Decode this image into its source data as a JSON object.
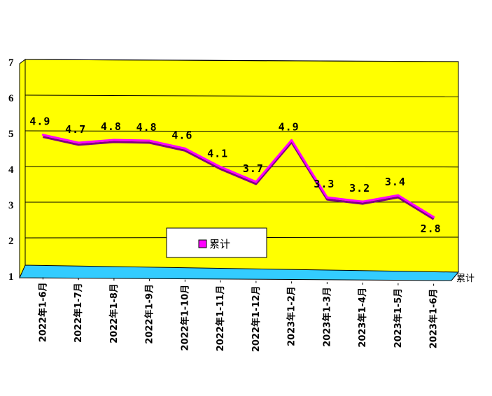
{
  "chart_data": {
    "type": "line",
    "title": "",
    "xlabel": "",
    "ylabel": "",
    "ylim": [
      1,
      7
    ],
    "yticks": [
      1,
      2,
      3,
      4,
      5,
      6,
      7
    ],
    "categories": [
      "2022年1-6月",
      "2022年1-7月",
      "2022年1-8月",
      "2022年1-9月",
      "2022年1-10月",
      "2022年1-11月",
      "2022年1-12月",
      "2023年1-2月",
      "2023年1-3月",
      "2023年1-4月",
      "2023年1-5月",
      "2023年1-6月"
    ],
    "series": [
      {
        "name": "累计",
        "values": [
          4.9,
          4.7,
          4.8,
          4.8,
          4.6,
          4.1,
          3.7,
          4.9,
          3.3,
          3.2,
          3.4,
          2.8
        ],
        "labels": [
          "4.9",
          "4.7",
          "4.8",
          "4.8",
          "4.6",
          "4.1",
          "3.7",
          "4.9",
          "3.3",
          "3.2",
          "3.4",
          "2.8"
        ],
        "color": "#ff00ff"
      }
    ],
    "depth_axis_label": "累计",
    "grid": true,
    "legend_position": "bottom-center",
    "colors": {
      "wall": "#ffff00",
      "floor": "#33ccff",
      "line": "#ff00ff",
      "line_shadow": "#800080"
    }
  }
}
